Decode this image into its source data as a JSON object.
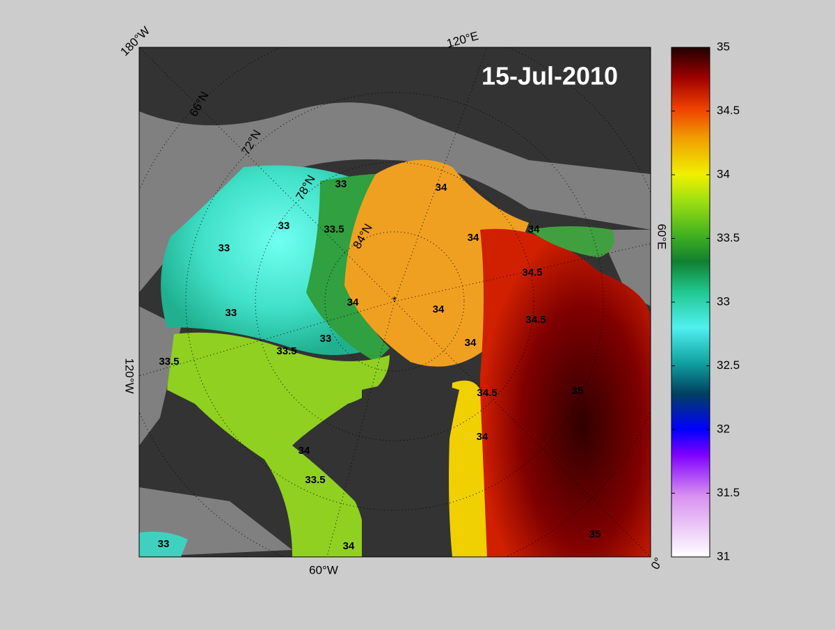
{
  "map": {
    "date_label": "15-Jul-2010",
    "longitude_labels": [
      "180°W",
      "120°E",
      "60°E",
      "0°",
      "60°W",
      "120°W"
    ],
    "latitude_labels": [
      "66°N",
      "72°N",
      "78°N",
      "84°N"
    ],
    "contour_labels": [
      33,
      33,
      33,
      33,
      33,
      33,
      33.5,
      33.5,
      33.5,
      33.5,
      34,
      34,
      34,
      34,
      34,
      34,
      34,
      34,
      34,
      34.5,
      34.5,
      34.5,
      35,
      35
    ]
  },
  "colorbar": {
    "range": [
      31,
      35
    ],
    "ticks": [
      31,
      31.5,
      32,
      32.5,
      33,
      33.5,
      34,
      34.5,
      35
    ]
  }
}
